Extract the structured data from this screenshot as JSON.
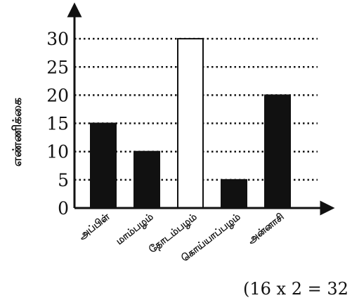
{
  "chart_data": {
    "type": "bar",
    "title": "",
    "xlabel": "",
    "ylabel": "எண்ணிக்கை",
    "categories": [
      "அப்பிள்",
      "மாம்பழம்",
      "தோடம்பழம்",
      "கொய்யாப்பழம்",
      "அன்னாசி"
    ],
    "values": [
      15,
      10,
      30,
      5,
      20
    ],
    "bar_fills": [
      "#111111",
      "#111111",
      "#ffffff",
      "#111111",
      "#111111"
    ],
    "yticks": [
      0,
      5,
      10,
      15,
      20,
      25,
      30
    ],
    "ylim": [
      0,
      30
    ],
    "grid": "dotted horizontal"
  },
  "footnote": "(16 x 2 = 32"
}
